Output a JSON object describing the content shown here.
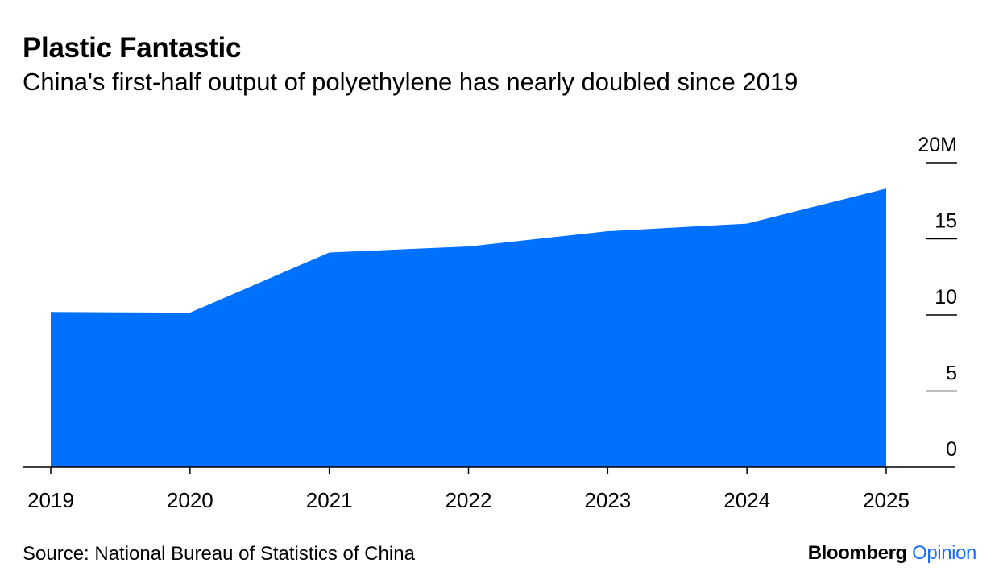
{
  "header": {
    "title": "Plastic Fantastic",
    "subtitle": "China's first-half output of polyethylene has nearly doubled since 2019"
  },
  "footer": {
    "source": "Source: National Bureau of Statistics of China",
    "brand_primary": "Bloomberg",
    "brand_secondary": "Opinion"
  },
  "chart_data": {
    "type": "area",
    "x": [
      "2019",
      "2020",
      "2021",
      "2022",
      "2023",
      "2024",
      "2025"
    ],
    "series": [
      {
        "values": [
          10.2,
          10.15,
          14.1,
          14.5,
          15.5,
          16.0,
          18.3
        ],
        "color": "#0070ff"
      }
    ],
    "ylim": [
      0,
      20
    ],
    "yticks": [
      0,
      5,
      10,
      15,
      20
    ],
    "ytick_labels": [
      "0",
      "5",
      "10",
      "15",
      "20M"
    ],
    "yaxis_position": "right",
    "grid": false
  }
}
